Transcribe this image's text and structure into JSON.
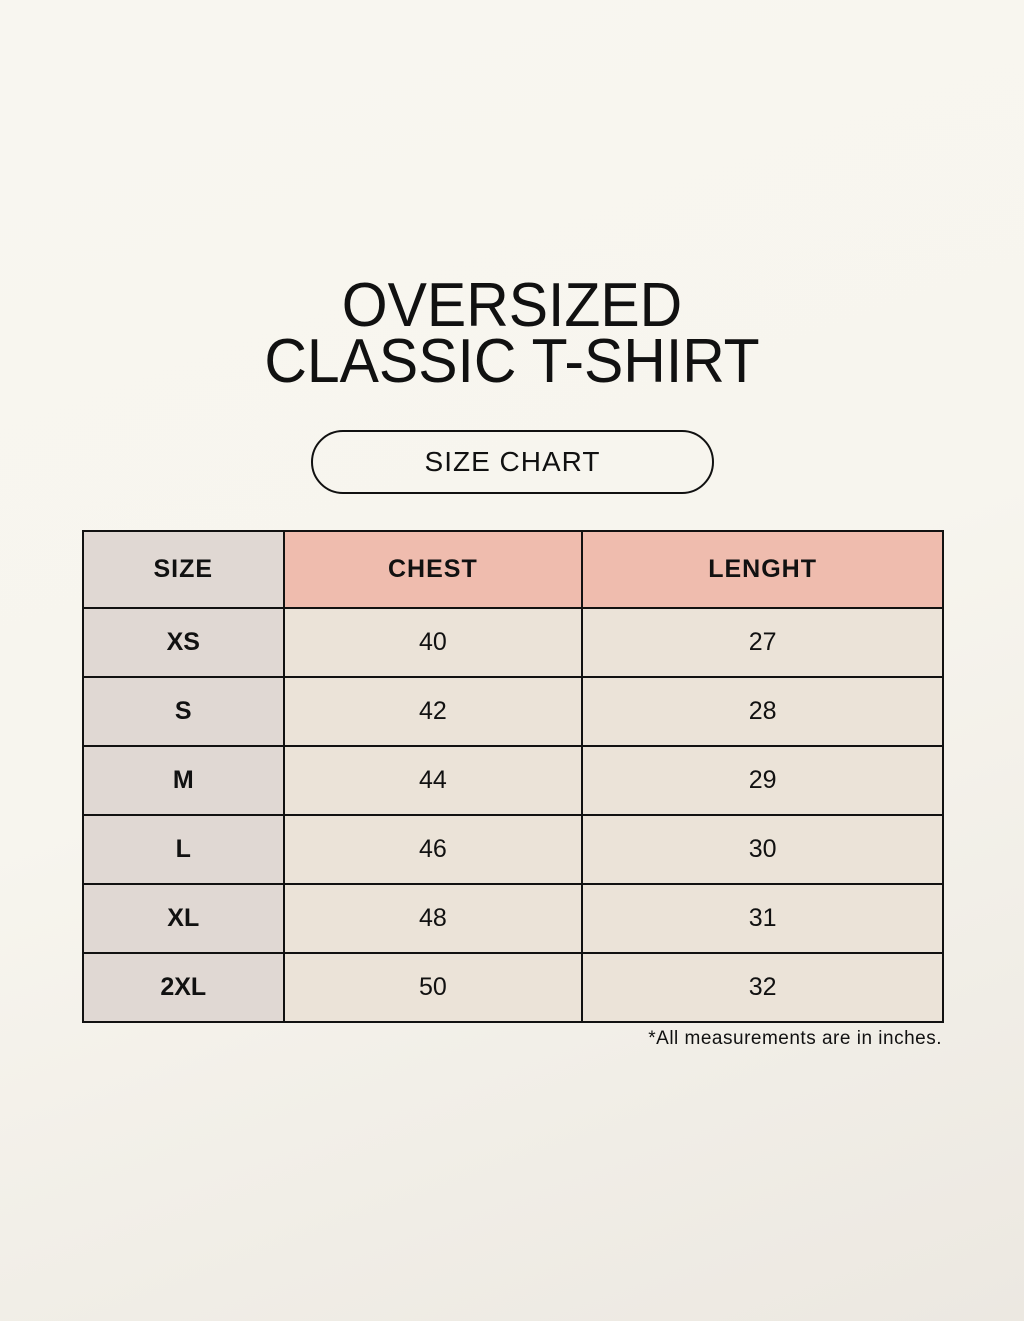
{
  "title_line1": "OVERSIZED",
  "title_line2": "CLASSIC T-SHIRT",
  "badge": "SIZE CHART",
  "table": {
    "headers": [
      "SIZE",
      "CHEST",
      "LENGHT"
    ],
    "rows": [
      [
        "XS",
        "40",
        "27"
      ],
      [
        "S",
        "42",
        "28"
      ],
      [
        "M",
        "44",
        "29"
      ],
      [
        "L",
        "46",
        "30"
      ],
      [
        "XL",
        "48",
        "31"
      ],
      [
        "2XL",
        "50",
        "32"
      ]
    ]
  },
  "note": "*All measurements are in inches.",
  "colors": {
    "size_column": "#e0d8d3",
    "header_accent": "#efbcae",
    "cell": "#ebe3d8",
    "background": "#f7f5ee"
  }
}
